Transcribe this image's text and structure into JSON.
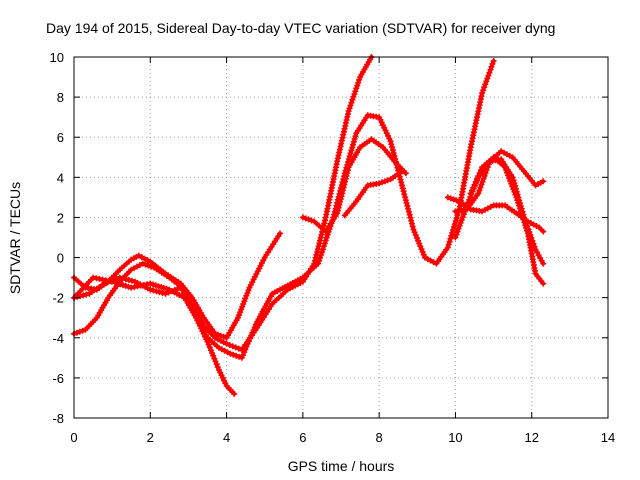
{
  "chart_data": {
    "type": "line",
    "title": "Day 194 of 2015, Sidereal Day-to-day VTEC variation (SDTVAR) for receiver dyng",
    "xlabel": "GPS time / hours",
    "ylabel": "SDTVAR / TECUs",
    "xlim": [
      0,
      14
    ],
    "ylim": [
      -8,
      10
    ],
    "xticks": [
      "0",
      "2",
      "4",
      "6",
      "8",
      "10",
      "12",
      "14"
    ],
    "yticks": [
      "-8",
      "-6",
      "-4",
      "-2",
      "0",
      "2",
      "4",
      "6",
      "8",
      "10"
    ],
    "grid": true,
    "color": "#ff0000",
    "series": [
      {
        "x": [
          0.0,
          0.3,
          0.6,
          0.9,
          1.2,
          1.5,
          1.8,
          2.1,
          2.5,
          2.9,
          3.2,
          3.5,
          3.8,
          4.0,
          4.2
        ],
        "y": [
          -3.8,
          -3.6,
          -3.0,
          -2.0,
          -1.2,
          -0.6,
          -0.3,
          -0.5,
          -1.0,
          -1.6,
          -3.0,
          -4.2,
          -5.6,
          -6.4,
          -6.8
        ]
      },
      {
        "x": [
          0.0,
          0.3,
          0.6,
          0.9,
          1.2,
          1.5,
          1.7,
          2.0,
          2.4,
          2.8,
          3.1,
          3.4,
          3.7,
          4.0,
          4.3,
          4.6,
          5.0,
          5.4
        ],
        "y": [
          -1.0,
          -1.5,
          -1.6,
          -1.2,
          -0.6,
          -0.1,
          0.1,
          -0.2,
          -0.8,
          -1.3,
          -2.0,
          -3.0,
          -3.8,
          -4.0,
          -3.0,
          -1.5,
          0.0,
          1.2
        ]
      },
      {
        "x": [
          0.0,
          0.4,
          0.8,
          1.2,
          1.6,
          2.0,
          2.4,
          2.8,
          3.1,
          3.4,
          3.7,
          4.0,
          4.4,
          4.8,
          5.2,
          5.6,
          6.0,
          6.3,
          6.6,
          6.9,
          7.2,
          7.5,
          7.8
        ],
        "y": [
          -2.0,
          -1.8,
          -1.3,
          -1.0,
          -1.2,
          -1.6,
          -1.8,
          -1.5,
          -2.4,
          -3.4,
          -4.0,
          -4.3,
          -4.6,
          -3.5,
          -2.3,
          -1.6,
          -1.2,
          -0.3,
          2.0,
          4.8,
          7.3,
          9.0,
          10.0
        ]
      },
      {
        "x": [
          0.0,
          0.5,
          1.0,
          1.5,
          2.0,
          2.5,
          2.9,
          3.2,
          3.5,
          3.8,
          4.1,
          4.4,
          4.8,
          5.2,
          5.6,
          6.0,
          6.4,
          6.8,
          7.1,
          7.4,
          7.7,
          8.0,
          8.3,
          8.6,
          8.9,
          9.2,
          9.5,
          9.8,
          10.1,
          10.4,
          10.7,
          11.0
        ],
        "y": [
          -2.0,
          -1.0,
          -1.2,
          -1.5,
          -1.3,
          -1.6,
          -2.0,
          -3.0,
          -4.0,
          -4.5,
          -4.8,
          -5.0,
          -3.2,
          -1.8,
          -1.4,
          -1.0,
          -0.3,
          2.0,
          4.2,
          6.2,
          7.1,
          7.0,
          5.8,
          3.6,
          1.4,
          0.0,
          -0.3,
          0.5,
          2.4,
          5.5,
          8.2,
          9.8
        ]
      },
      {
        "x": [
          6.0,
          6.3,
          6.6,
          6.9,
          7.2,
          7.5,
          7.8,
          8.1,
          8.4,
          8.7
        ],
        "y": [
          2.0,
          1.8,
          1.3,
          2.2,
          4.5,
          5.5,
          5.9,
          5.5,
          4.8,
          4.2
        ]
      },
      {
        "x": [
          7.1,
          7.4,
          7.7,
          8.0,
          8.3,
          8.6
        ],
        "y": [
          2.1,
          2.8,
          3.6,
          3.7,
          3.9,
          4.3
        ]
      },
      {
        "x": [
          9.8,
          10.1,
          10.4,
          10.7,
          11.0,
          11.3,
          11.6,
          11.9,
          12.2,
          12.3
        ],
        "y": [
          3.0,
          2.8,
          2.4,
          2.3,
          2.6,
          2.6,
          2.2,
          1.8,
          1.5,
          1.3
        ]
      },
      {
        "x": [
          10.0,
          10.3,
          10.6,
          10.9,
          11.2,
          11.5,
          11.8,
          12.1,
          12.3
        ],
        "y": [
          2.3,
          2.4,
          3.2,
          4.8,
          5.3,
          5.0,
          4.3,
          3.6,
          3.8
        ]
      },
      {
        "x": [
          10.0,
          10.3,
          10.6,
          10.9,
          11.2,
          11.5,
          11.8,
          12.1,
          12.3
        ],
        "y": [
          1.0,
          2.6,
          4.0,
          4.8,
          4.9,
          4.0,
          2.0,
          0.4,
          -0.3
        ]
      },
      {
        "x": [
          10.4,
          10.7,
          11.0,
          11.3,
          11.6,
          11.9,
          12.1,
          12.3
        ],
        "y": [
          3.2,
          4.5,
          5.0,
          4.5,
          3.0,
          1.2,
          -0.8,
          -1.3
        ]
      }
    ]
  }
}
